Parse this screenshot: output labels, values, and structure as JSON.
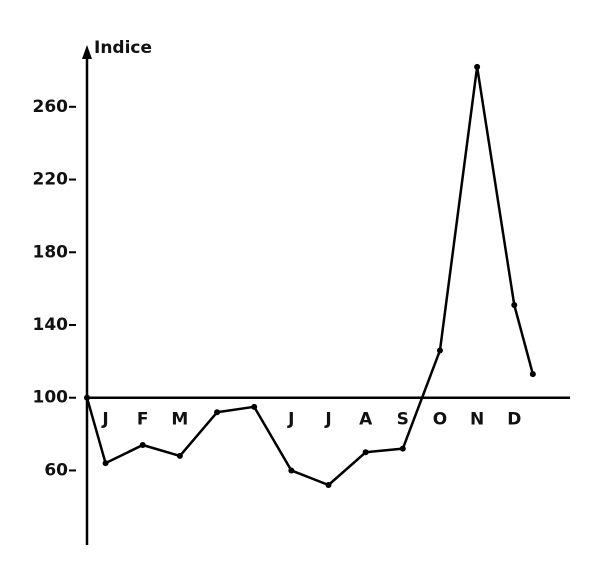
{
  "chart_data": {
    "type": "line",
    "y_label": "Indice",
    "x": [
      0.5,
      1,
      2,
      3,
      4,
      5,
      6,
      7,
      8,
      9,
      10,
      11,
      12,
      12.5
    ],
    "series": [
      {
        "color": "#000000",
        "values": [
          100,
          64,
          74,
          68,
          92,
          95,
          60,
          52,
          70,
          72,
          126,
          282,
          151,
          113
        ]
      }
    ],
    "xlim": [
      0.5,
      13.5
    ],
    "xticks": [
      {
        "value": 1,
        "label": "J"
      },
      {
        "value": 2,
        "label": "F"
      },
      {
        "value": 3,
        "label": "M"
      },
      {
        "value": 6,
        "label": "J"
      },
      {
        "value": 7,
        "label": "J"
      },
      {
        "value": 8,
        "label": "A"
      },
      {
        "value": 9,
        "label": "S"
      },
      {
        "value": 10,
        "label": "O"
      },
      {
        "value": 11,
        "label": "N"
      },
      {
        "value": 12,
        "label": "D"
      }
    ],
    "ylim": [
      19,
      294
    ],
    "yticks": [
      60,
      100,
      140,
      180,
      220,
      260
    ],
    "x_axis_at": 100,
    "grid": false
  }
}
